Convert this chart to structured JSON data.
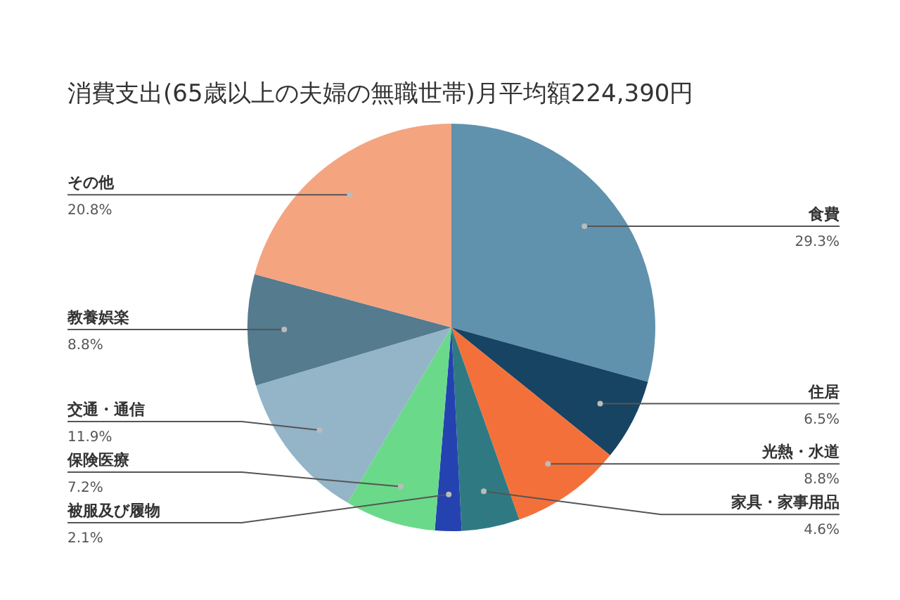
{
  "chart_data": {
    "type": "pie",
    "title": "消費支出(65歳以上の夫婦の無職世帯)月平均額224,390円",
    "categories": [
      "食費",
      "住居",
      "光熱・水道",
      "家具・家事用品",
      "被服及び履物",
      "保険医療",
      "交通・通信",
      "教養娯楽",
      "その他"
    ],
    "values": [
      29.3,
      6.5,
      8.8,
      4.6,
      2.1,
      7.2,
      11.9,
      8.8,
      20.8
    ],
    "value_labels": [
      "29.3%",
      "6.5%",
      "8.8%",
      "4.6%",
      "2.1%",
      "7.2%",
      "11.9%",
      "8.8%",
      "20.8%"
    ],
    "colors": [
      "#6092ae",
      "#174463",
      "#f4703a",
      "#2f7a82",
      "#2443b0",
      "#6bd98a",
      "#94b4c8",
      "#557b8e",
      "#f5a480"
    ]
  }
}
